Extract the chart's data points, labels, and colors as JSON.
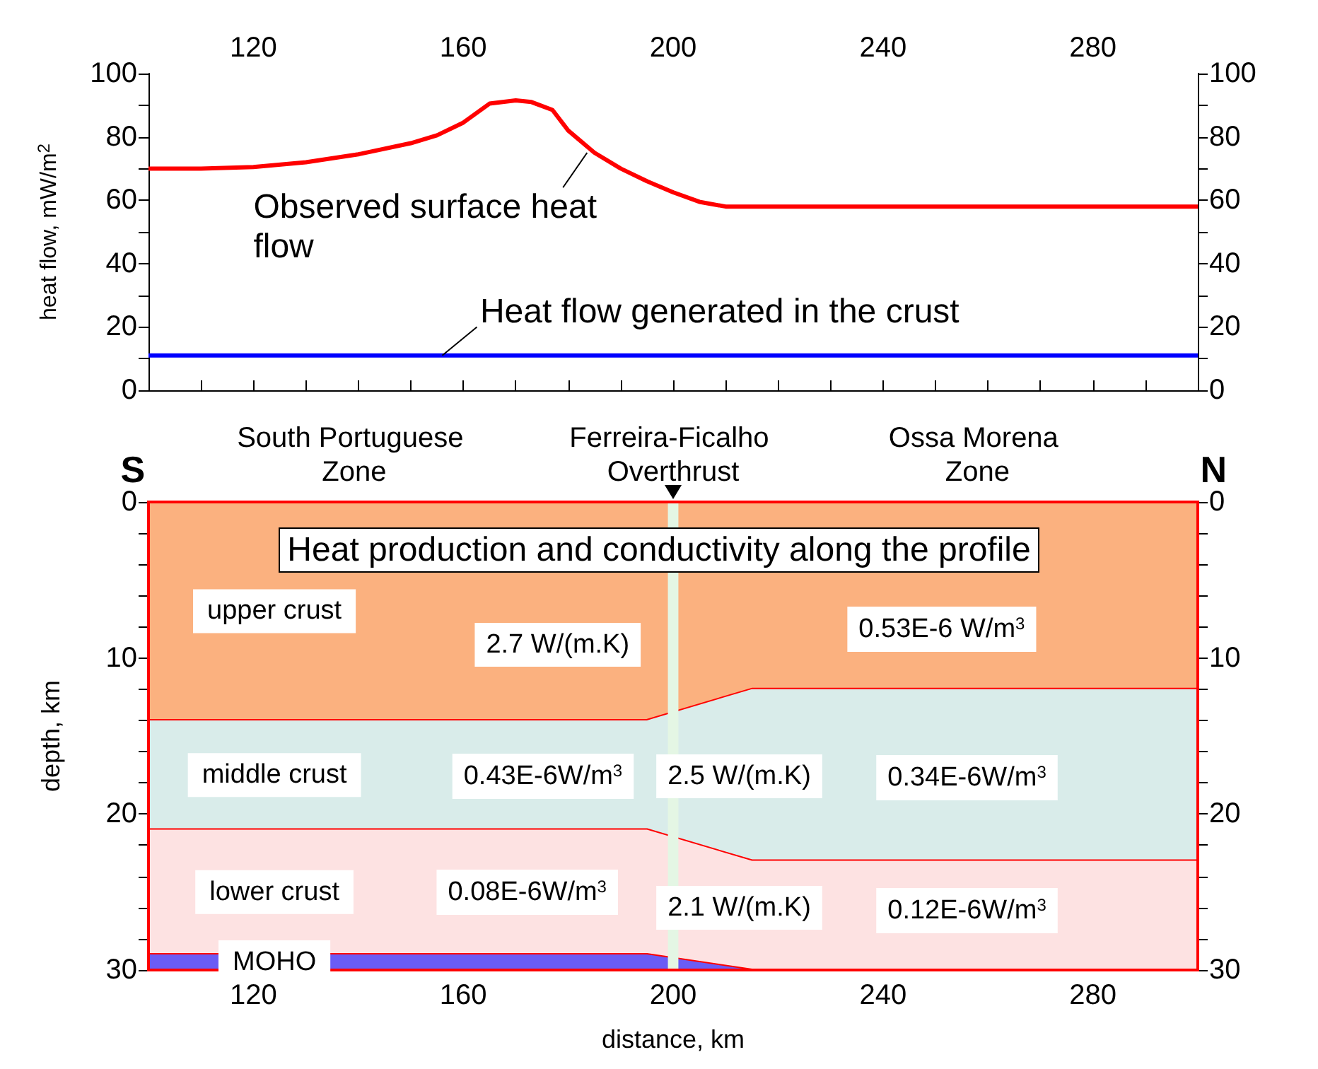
{
  "chart_data": [
    {
      "type": "line",
      "ylabel": "heat flow, mW/m$^{2}$",
      "xlim": [
        100,
        300
      ],
      "xticks": [
        {
          "value": 100,
          "label": null
        },
        {
          "value": 110,
          "label": null
        },
        120,
        {
          "value": 130,
          "label": null
        },
        {
          "value": 140,
          "label": null
        },
        {
          "value": 150,
          "label": null
        },
        160,
        {
          "value": 170,
          "label": null
        },
        {
          "value": 180,
          "label": null
        },
        {
          "value": 190,
          "label": null
        },
        200,
        {
          "value": 210,
          "label": null
        },
        {
          "value": 220,
          "label": null
        },
        {
          "value": 230,
          "label": null
        },
        240,
        {
          "value": 250,
          "label": null
        },
        {
          "value": 260,
          "label": null
        },
        {
          "value": 270,
          "label": null
        },
        280,
        {
          "value": 290,
          "label": null
        },
        {
          "value": 300,
          "label": null
        }
      ],
      "ylim": [
        0,
        100
      ],
      "yticks": [
        0,
        {
          "value": 10,
          "label": null
        },
        20,
        {
          "value": 30,
          "label": null
        },
        40,
        {
          "value": 50,
          "label": null
        },
        60,
        {
          "value": 70,
          "label": null
        },
        80,
        {
          "value": 90,
          "label": null
        },
        100
      ],
      "y2lim": [
        0,
        100
      ],
      "y2ticks": [
        0,
        {
          "value": 10,
          "label": null
        },
        20,
        {
          "value": 30,
          "label": null
        },
        40,
        {
          "value": 50,
          "label": null
        },
        60,
        {
          "value": 70,
          "label": null
        },
        80,
        {
          "value": 90,
          "label": null
        },
        100
      ],
      "series": [
        {
          "name": "Observed surface heat flow",
          "color": "#ff0000",
          "x": [
            100,
            110,
            120,
            130,
            140,
            150,
            155,
            160,
            165,
            170,
            173,
            177,
            180,
            185,
            190,
            195,
            200,
            205,
            210,
            220,
            300
          ],
          "values": [
            70,
            70,
            70.5,
            72,
            74.5,
            78,
            80.5,
            84.5,
            90.5,
            91.5,
            91,
            88.5,
            82,
            75,
            70,
            66,
            62.5,
            59.5,
            58,
            58,
            58
          ]
        },
        {
          "name": "Heat flow generated in the crust",
          "color": "#0000ff",
          "x": [
            100,
            300
          ],
          "values": [
            11,
            11
          ]
        }
      ]
    },
    {
      "type": "area",
      "stacked": true,
      "title": "Heat production and conductivity along the profile",
      "xlabel": "distance, km",
      "ylabel": "depth, km",
      "x": [
        100,
        195,
        215,
        300
      ],
      "xlim": [
        100,
        300
      ],
      "xticks": [
        {
          "value": 100,
          "label": null
        },
        {
          "value": 110,
          "label": null
        },
        120,
        {
          "value": 130,
          "label": null
        },
        {
          "value": 140,
          "label": null
        },
        {
          "value": 150,
          "label": null
        },
        160,
        {
          "value": 170,
          "label": null
        },
        {
          "value": 180,
          "label": null
        },
        {
          "value": 190,
          "label": null
        },
        200,
        {
          "value": 210,
          "label": null
        },
        {
          "value": 220,
          "label": null
        },
        {
          "value": 230,
          "label": null
        },
        240,
        {
          "value": 250,
          "label": null
        },
        {
          "value": 260,
          "label": null
        },
        {
          "value": 270,
          "label": null
        },
        280,
        {
          "value": 290,
          "label": null
        },
        {
          "value": 300,
          "label": null
        }
      ],
      "ylim": [
        30,
        0
      ],
      "yticks": [
        0,
        {
          "value": 2,
          "label": null
        },
        {
          "value": 4,
          "label": null
        },
        {
          "value": 6,
          "label": null
        },
        {
          "value": 8,
          "label": null
        },
        10,
        {
          "value": 12,
          "label": null
        },
        {
          "value": 14,
          "label": null
        },
        {
          "value": 16,
          "label": null
        },
        {
          "value": 18,
          "label": null
        },
        20,
        {
          "value": 22,
          "label": null
        },
        {
          "value": 24,
          "label": null
        },
        {
          "value": 26,
          "label": null
        },
        {
          "value": 28,
          "label": null
        },
        30
      ],
      "y2lim": [
        30,
        0
      ],
      "y2ticks": [
        0,
        {
          "value": 2,
          "label": null
        },
        {
          "value": 4,
          "label": null
        },
        {
          "value": 6,
          "label": null
        },
        {
          "value": 8,
          "label": null
        },
        10,
        {
          "value": 12,
          "label": null
        },
        {
          "value": 14,
          "label": null
        },
        {
          "value": 16,
          "label": null
        },
        {
          "value": 18,
          "label": null
        },
        20,
        {
          "value": 22,
          "label": null
        },
        {
          "value": 24,
          "label": null
        },
        {
          "value": 26,
          "label": null
        },
        {
          "value": 28,
          "label": null
        },
        30
      ],
      "series": [
        {
          "name": "upper crust",
          "color": "#fbb17f",
          "values": [
            14,
            14,
            12,
            12
          ]
        },
        {
          "name": "middle crust",
          "color": "#d9ecea",
          "values": [
            7,
            7,
            11,
            11
          ]
        },
        {
          "name": "lower crust",
          "color": "#fde2e2",
          "values": [
            8,
            8,
            7,
            7
          ]
        },
        {
          "name": "MOHO",
          "color": "#6a5cf5",
          "values": [
            1,
            1,
            0,
            0
          ]
        }
      ],
      "bands": [
        {
          "axis": "x",
          "from": 199,
          "to": 201,
          "color": "#e4f6e4"
        }
      ],
      "annotations": [
        "S",
        "South Portuguese Zone",
        "Ferreira-Ficalho Overthrust",
        "Ossa Morena Zone",
        "N",
        "2.7 W/(m.K)",
        "0.53E-6 W/m$^{3}$",
        "0.43E-6W/m$^{3}$",
        "2.5 W/(m.K)",
        "0.34E-6W/m$^{3}$",
        "0.08E-6W/m$^{3}$",
        "2.1 W/(m.K)",
        "0.12E-6W/m$^{3}$"
      ]
    }
  ]
}
